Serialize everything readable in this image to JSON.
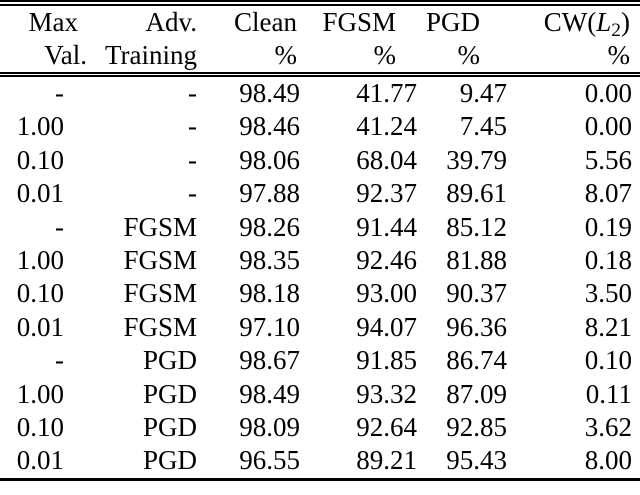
{
  "table": {
    "columns": [
      {
        "id": "max-val",
        "line1": "Max",
        "line2": "Val."
      },
      {
        "id": "adv-training",
        "line1": "Adv.",
        "line2": "Training"
      },
      {
        "id": "clean",
        "line1": "Clean",
        "line2": "%"
      },
      {
        "id": "fgsm",
        "line1": "FGSM",
        "line2": "%"
      },
      {
        "id": "pgd",
        "line1": "PGD",
        "line2": "%"
      },
      {
        "id": "cw-l2",
        "line1_prefix": "CW(",
        "line1_var": "L",
        "line1_sub": "2",
        "line1_suffix": ")",
        "line2": "%"
      }
    ],
    "rows": [
      [
        "-",
        "-",
        "98.49",
        "41.77",
        "9.47",
        "0.00"
      ],
      [
        "1.00",
        "-",
        "98.46",
        "41.24",
        "7.45",
        "0.00"
      ],
      [
        "0.10",
        "-",
        "98.06",
        "68.04",
        "39.79",
        "5.56"
      ],
      [
        "0.01",
        "-",
        "97.88",
        "92.37",
        "89.61",
        "8.07"
      ],
      [
        "-",
        "FGSM",
        "98.26",
        "91.44",
        "85.12",
        "0.19"
      ],
      [
        "1.00",
        "FGSM",
        "98.35",
        "92.46",
        "81.88",
        "0.18"
      ],
      [
        "0.10",
        "FGSM",
        "98.18",
        "93.00",
        "90.37",
        "3.50"
      ],
      [
        "0.01",
        "FGSM",
        "97.10",
        "94.07",
        "96.36",
        "8.21"
      ],
      [
        "-",
        "PGD",
        "98.67",
        "91.85",
        "86.74",
        "0.10"
      ],
      [
        "1.00",
        "PGD",
        "98.49",
        "93.32",
        "87.09",
        "0.11"
      ],
      [
        "0.10",
        "PGD",
        "98.09",
        "92.64",
        "92.85",
        "3.62"
      ],
      [
        "0.01",
        "PGD",
        "96.55",
        "89.21",
        "95.43",
        "8.00"
      ]
    ],
    "colors": {
      "text": "#000000",
      "background": "#ffffff",
      "rule": "#000000"
    }
  }
}
